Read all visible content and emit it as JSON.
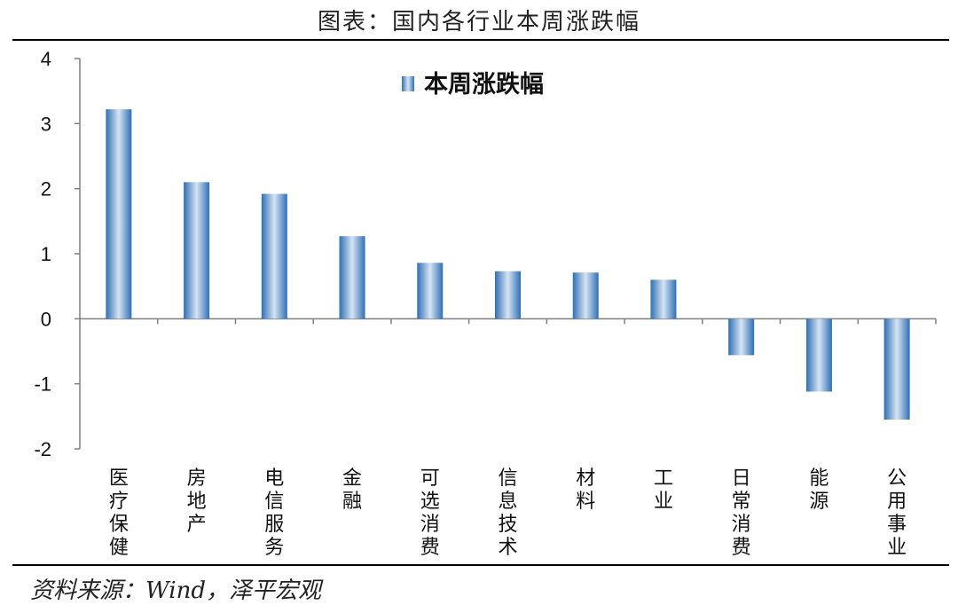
{
  "figure": {
    "title": "图表：国内各行业本周涨跌幅",
    "source": "资料来源：Wind，泽平宏观"
  },
  "colors": {
    "bar_edge": "#2f6fb5",
    "bar_center": "#d6e4f3",
    "axis": "#7f7f7f"
  },
  "chart_data": {
    "type": "bar",
    "title": "",
    "categories": [
      "医疗保健",
      "房地产",
      "电信服务",
      "金融",
      "可选消费",
      "信息技术",
      "材料",
      "工业",
      "日常消费",
      "能源",
      "公用事业"
    ],
    "series": [
      {
        "name": "本周涨跌幅",
        "values": [
          3.22,
          2.1,
          1.92,
          1.27,
          0.86,
          0.73,
          0.71,
          0.6,
          -0.56,
          -1.12,
          -1.55
        ]
      }
    ],
    "xlabel": "",
    "ylabel": "",
    "ylim": [
      -2,
      4
    ],
    "yticks": [
      "-2",
      "-1",
      "0",
      "1",
      "2",
      "3",
      "4"
    ],
    "legend_position": "top-center",
    "grid": false
  }
}
